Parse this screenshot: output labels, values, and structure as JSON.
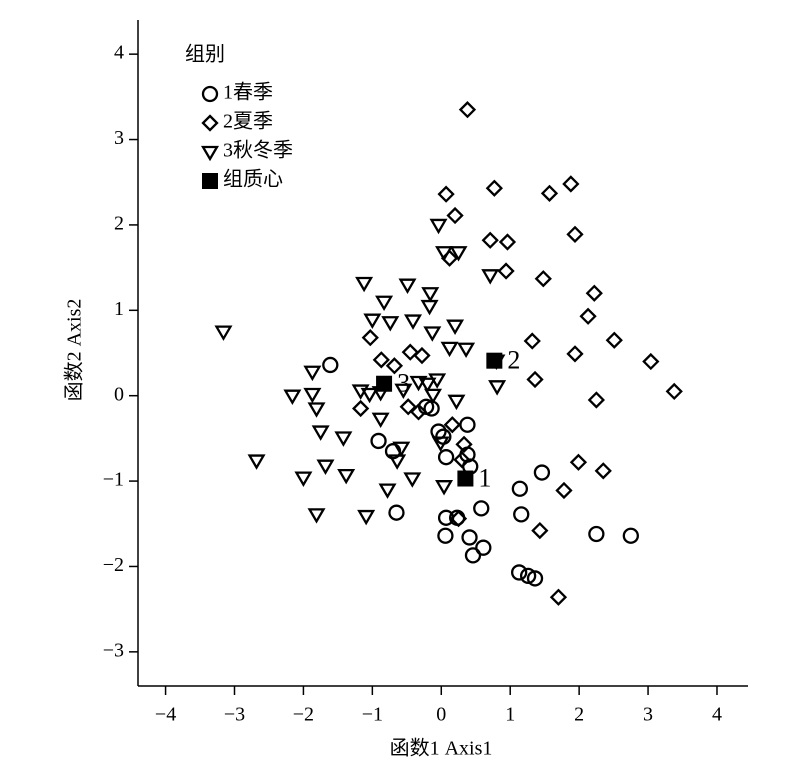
{
  "chart_data": {
    "type": "scatter",
    "xlabel": "函数1 Axis1",
    "ylabel": "函数2 Axis2",
    "legend_title": "组别",
    "legend": "upper left",
    "xlim": [
      -4.4,
      4.45
    ],
    "ylim": [
      -3.4,
      4.4
    ],
    "xticks": [
      {
        "value": -4,
        "label": "−4"
      },
      {
        "value": -3,
        "label": "−3"
      },
      {
        "value": -2,
        "label": "−2"
      },
      {
        "value": -1,
        "label": "−1"
      },
      0,
      1,
      2,
      3,
      4
    ],
    "yticks": [
      {
        "value": -3,
        "label": "−3"
      },
      {
        "value": -2,
        "label": "−2"
      },
      {
        "value": -1,
        "label": "−1"
      },
      0,
      1,
      2,
      3,
      4
    ],
    "series": [
      {
        "name": "1春季",
        "marker": "circle",
        "color": "#000000",
        "x": [
          -1.61,
          -0.91,
          -0.7,
          -0.65,
          -0.14,
          -0.04,
          0.03,
          0.07,
          0.38,
          0.42,
          0.07,
          0.06,
          0.23,
          0.41,
          0.46,
          0.58,
          0.61,
          1.14,
          1.16,
          1.13,
          1.26,
          1.36,
          1.46,
          2.25,
          2.75,
          0.38,
          -0.22
        ],
        "y": [
          0.36,
          -0.53,
          -0.65,
          -1.37,
          -0.15,
          -0.42,
          -0.48,
          -0.72,
          -0.34,
          -0.83,
          -1.43,
          -1.64,
          -1.43,
          -1.66,
          -1.87,
          -1.32,
          -1.78,
          -1.09,
          -1.39,
          -2.07,
          -2.11,
          -2.14,
          -0.9,
          -1.62,
          -1.64,
          -0.69,
          -0.13
        ]
      },
      {
        "name": "2夏季",
        "marker": "diamond",
        "color": "#000000",
        "x": [
          0.38,
          0.07,
          0.77,
          0.2,
          1.57,
          1.88,
          0.12,
          0.71,
          0.96,
          0.94,
          1.94,
          1.48,
          2.22,
          2.13,
          2.51,
          1.32,
          1.94,
          3.04,
          3.38,
          1.36,
          2.25,
          -1.03,
          -0.87,
          -1.17,
          -0.45,
          -0.28,
          -0.48,
          -0.33,
          0.16,
          0.33,
          0.3,
          0.25,
          1.43,
          1.78,
          1.99,
          2.35,
          1.7,
          -0.68
        ],
        "y": [
          3.35,
          2.36,
          2.43,
          2.11,
          2.37,
          2.48,
          1.61,
          1.82,
          1.8,
          1.46,
          1.89,
          1.37,
          1.2,
          0.93,
          0.65,
          0.64,
          0.49,
          0.4,
          0.05,
          0.19,
          -0.05,
          0.68,
          0.42,
          -0.15,
          0.51,
          0.47,
          -0.13,
          -0.19,
          -0.34,
          -0.57,
          -0.75,
          -1.44,
          -1.58,
          -1.11,
          -0.78,
          -0.88,
          -2.36,
          0.35
        ]
      },
      {
        "name": "3秋冬季",
        "marker": "triangle-down",
        "color": "#000000",
        "x": [
          -3.16,
          -2.68,
          -2.16,
          -2.0,
          -1.87,
          -1.81,
          -1.87,
          -1.81,
          -1.75,
          -1.68,
          -1.42,
          -1.38,
          -1.12,
          -1.0,
          -0.83,
          -0.74,
          -0.49,
          -0.41,
          -0.17,
          -0.16,
          -0.13,
          -1.17,
          -1.04,
          -0.88,
          -0.88,
          -1.09,
          -0.78,
          -0.64,
          -0.58,
          -0.42,
          0.04,
          0.12,
          0.2,
          0.36,
          -0.04,
          0.04,
          0.25,
          0.71,
          0.8,
          0.81,
          -0.06,
          -0.2,
          0.22,
          -0.01,
          -0.12,
          -0.33,
          -0.55
        ],
        "y": [
          0.75,
          -0.76,
          0.0,
          -0.96,
          0.02,
          -0.15,
          0.28,
          -1.39,
          -0.42,
          -0.82,
          -0.49,
          -0.93,
          1.32,
          0.89,
          1.1,
          0.86,
          1.3,
          0.88,
          1.05,
          1.2,
          0.74,
          0.06,
          0.02,
          -0.27,
          0.04,
          -1.41,
          -1.1,
          -0.76,
          -0.61,
          -0.97,
          -1.06,
          0.56,
          0.82,
          0.55,
          2.0,
          1.68,
          1.68,
          1.41,
          0.41,
          0.11,
          0.19,
          0.14,
          -0.06,
          -0.55,
          0.01,
          0.16,
          0.07
        ]
      },
      {
        "name": "组质心",
        "marker": "square",
        "color": "#000000",
        "x": [
          0.35,
          0.77,
          -0.83
        ],
        "y": [
          -0.97,
          0.41,
          0.14
        ],
        "point_labels": [
          "1",
          "2",
          "3"
        ]
      }
    ]
  }
}
